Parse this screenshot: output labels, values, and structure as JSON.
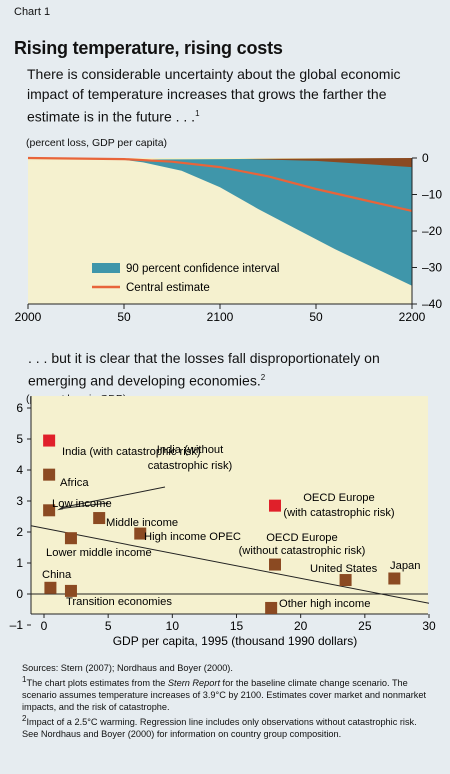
{
  "header": {
    "chart_label": "Chart 1",
    "title": "Rising temperature, rising costs",
    "subtitle": "There is considerable uncertainty about the global economic impact of temperature increases that grows the farther the estimate is in the future . . .",
    "subtitle_note": "1",
    "second_subtitle": ". . . but it is clear that the losses fall disproportionately on emerging and developing economies.",
    "second_subtitle_note": "2"
  },
  "chart_data": [
    {
      "type": "area",
      "unit_label": "(percent loss, GDP per capita)",
      "x_ticks": [
        "2000",
        "50",
        "2100",
        "50",
        "2200"
      ],
      "x_tick_values": [
        2000,
        2050,
        2100,
        2150,
        2200
      ],
      "y_ticks": [
        "0",
        "–10",
        "–20",
        "–30",
        "–40"
      ],
      "y_tick_values": [
        0,
        -10,
        -20,
        -30,
        -40
      ],
      "xlim": [
        2000,
        2200
      ],
      "ylim": [
        -40,
        0
      ],
      "y_axis_side": "right",
      "legend_placement": "bottom-left",
      "series": [
        {
          "name": "90 percent confidence interval",
          "color": "#3f96aa",
          "x": [
            2000,
            2020,
            2040,
            2050,
            2060,
            2080,
            2100,
            2120,
            2140,
            2160,
            2180,
            2200
          ],
          "upper": [
            0,
            0,
            0,
            0,
            0,
            0,
            0,
            -0.2,
            -0.5,
            -0.9,
            -1.3,
            -1.8
          ],
          "lower": [
            0,
            0,
            -0.2,
            -0.5,
            -1.2,
            -3.5,
            -8,
            -14,
            -19.5,
            -25,
            -30,
            -35
          ]
        },
        {
          "name": "Central estimate",
          "color": "#e8643a",
          "x": [
            2000,
            2050,
            2075,
            2100,
            2125,
            2150,
            2175,
            2200
          ],
          "y": [
            0,
            -0.3,
            -1,
            -2.5,
            -5,
            -8.5,
            -11.5,
            -14.5
          ]
        },
        {
          "name": "",
          "color": "#8b4a22",
          "x": [
            2000,
            2100,
            2150,
            2200
          ],
          "upper": [
            0,
            0,
            0,
            0
          ],
          "lower": [
            0,
            -0.1,
            -0.8,
            -2.5
          ]
        },
        {
          "name": "",
          "color": "#f3efc6",
          "x": [
            2000,
            2100,
            2200
          ],
          "upper": [
            0,
            0,
            0
          ],
          "lower": [
            -0.6,
            -0.3,
            0
          ]
        }
      ]
    },
    {
      "type": "scatter",
      "unit_label": "(percent loss in GDP)",
      "xlabel": "GDP per capita, 1995 (thousand 1990 dollars)",
      "x_ticks": [
        "0",
        "5",
        "10",
        "15",
        "20",
        "25",
        "30"
      ],
      "x_tick_values": [
        0,
        5,
        10,
        15,
        20,
        25,
        30
      ],
      "y_ticks": [
        "6",
        "5",
        "4",
        "3",
        "2",
        "1",
        "0",
        "–1"
      ],
      "y_tick_values": [
        6,
        5,
        4,
        3,
        2,
        1,
        0,
        -1
      ],
      "xlim": [
        -1,
        30
      ],
      "ylim": [
        -1,
        6
      ],
      "regression_line": {
        "x": [
          -1,
          30
        ],
        "y": [
          2.2,
          -0.3
        ]
      },
      "zero_line": true,
      "points": [
        {
          "label": "India (with catastrophic risk)",
          "x": 0.4,
          "y": 4.95,
          "color": "#e0202a"
        },
        {
          "label": "Africa",
          "x": 0.4,
          "y": 3.85,
          "color": "#8b4a22"
        },
        {
          "label": "Low income",
          "x": 0.4,
          "y": 2.7,
          "color": "#8b4a22"
        },
        {
          "label": "India (without catastrophic risk)",
          "x": 0.4,
          "y": 2.7,
          "color": "#8b4a22"
        },
        {
          "label": "Middle income",
          "x": 4.3,
          "y": 2.45,
          "color": "#8b4a22"
        },
        {
          "label": "High income OPEC",
          "x": 7.5,
          "y": 1.95,
          "color": "#8b4a22"
        },
        {
          "label": "Lower middle income",
          "x": 2.1,
          "y": 1.8,
          "color": "#8b4a22"
        },
        {
          "label": "China",
          "x": 0.5,
          "y": 0.2,
          "color": "#8b4a22"
        },
        {
          "label": "Transition economies",
          "x": 2.1,
          "y": 0.1,
          "color": "#8b4a22"
        },
        {
          "label": "OECD Europe (with catastrophic risk)",
          "x": 18,
          "y": 2.85,
          "color": "#e0202a"
        },
        {
          "label": "OECD Europe (without catastrophic risk)",
          "x": 18,
          "y": 0.95,
          "color": "#8b4a22"
        },
        {
          "label": "United States",
          "x": 23.5,
          "y": 0.45,
          "color": "#8b4a22"
        },
        {
          "label": "Japan",
          "x": 27.3,
          "y": 0.5,
          "color": "#8b4a22"
        },
        {
          "label": "Other high income",
          "x": 17.7,
          "y": -0.45,
          "color": "#8b4a22"
        }
      ]
    }
  ],
  "notes": {
    "sources": "Sources: Stern (2007); Nordhaus and Boyer (2000).",
    "note1_mark": "1",
    "note1_pre": "The chart plots estimates from the ",
    "note1_italic": "Stern Report",
    "note1_post": " for the baseline climate change scenario. The scenario assumes temperature increases of 3.9°C by 2100. Estimates cover market and nonmarket impacts, and the risk of catastrophe.",
    "note2_mark": "2",
    "note2": "Impact of a 2.5°C warming. Regression line includes only observations without catastrophic risk. See Nordhaus and Boyer (2000) for information on country group composition."
  }
}
